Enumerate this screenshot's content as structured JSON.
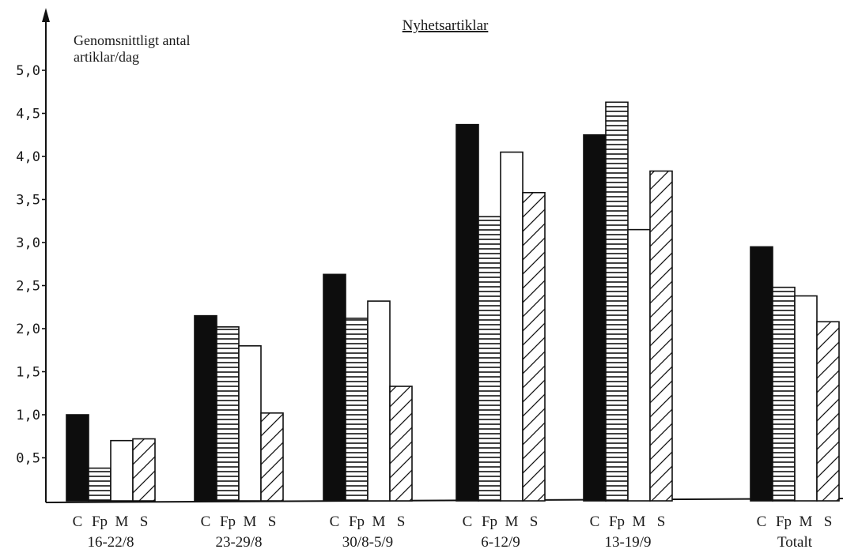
{
  "chart_data": {
    "type": "bar",
    "title": "Nyhetsartiklar",
    "ylabel_line1": "Genomsnittligt antal",
    "ylabel_line2": "artiklar/dag",
    "ylim": [
      0,
      5.5
    ],
    "yticks": [
      {
        "value": 0.5,
        "label": "0,5"
      },
      {
        "value": 1.0,
        "label": "1,0"
      },
      {
        "value": 1.5,
        "label": "1,5"
      },
      {
        "value": 2.0,
        "label": "2,0"
      },
      {
        "value": 2.5,
        "label": "2,5"
      },
      {
        "value": 3.0,
        "label": "3,0"
      },
      {
        "value": 3.5,
        "label": "3,5"
      },
      {
        "value": 4.0,
        "label": "4,0"
      },
      {
        "value": 4.5,
        "label": "4,5"
      },
      {
        "value": 5.0,
        "label": "5,0"
      }
    ],
    "series": [
      {
        "name": "C",
        "pattern": "solid"
      },
      {
        "name": "Fp",
        "pattern": "horizontal"
      },
      {
        "name": "M",
        "pattern": "empty"
      },
      {
        "name": "S",
        "pattern": "diagonal"
      }
    ],
    "groups": [
      {
        "label": "16-22/8",
        "values": [
          1.0,
          0.38,
          0.7,
          0.72
        ]
      },
      {
        "label": "23-29/8",
        "values": [
          2.15,
          2.02,
          1.8,
          1.02
        ]
      },
      {
        "label": "30/8-5/9",
        "values": [
          2.63,
          2.12,
          2.32,
          1.33
        ]
      },
      {
        "label": "6-12/9",
        "values": [
          4.37,
          3.3,
          4.05,
          3.58
        ]
      },
      {
        "label": "13-19/9",
        "values": [
          4.25,
          4.63,
          3.15,
          3.83
        ]
      },
      {
        "label": "Totalt",
        "values": [
          2.95,
          2.48,
          2.38,
          2.08
        ]
      }
    ]
  }
}
